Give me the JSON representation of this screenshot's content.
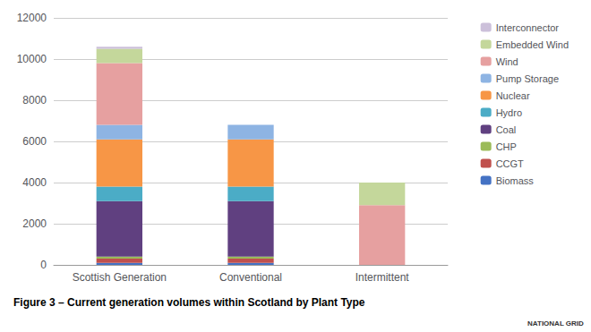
{
  "chart_data": {
    "type": "bar",
    "stacked": true,
    "title": "Figure 3 – Current generation volumes within Scotland by Plant Type",
    "annotations": [
      {
        "text": "NATIONAL GRID"
      }
    ],
    "categories": [
      "Scottish Generation",
      "Conventional",
      "Intermittent"
    ],
    "series": [
      {
        "name": "Biomass",
        "color": "#4472C4",
        "values": [
          100,
          100,
          0
        ]
      },
      {
        "name": "CCGT",
        "color": "#C0504D",
        "values": [
          200,
          200,
          0
        ]
      },
      {
        "name": "CHP",
        "color": "#9BBB59",
        "values": [
          100,
          100,
          0
        ]
      },
      {
        "name": "Coal",
        "color": "#604080",
        "values": [
          2700,
          2700,
          0
        ]
      },
      {
        "name": "Hydro",
        "color": "#4BACC6",
        "values": [
          700,
          700,
          0
        ]
      },
      {
        "name": "Nuclear",
        "color": "#F79646",
        "values": [
          2300,
          2300,
          0
        ]
      },
      {
        "name": "Pump Storage",
        "color": "#8EB4E3",
        "values": [
          700,
          700,
          0
        ]
      },
      {
        "name": "Wind",
        "color": "#E6A0A0",
        "values": [
          3000,
          0,
          2900
        ]
      },
      {
        "name": "Embedded Wind",
        "color": "#C4D79B",
        "values": [
          700,
          0,
          1100
        ]
      },
      {
        "name": "Interconnector",
        "color": "#CCC0DA",
        "values": [
          100,
          0,
          0
        ]
      }
    ],
    "ylim": [
      0,
      12000
    ],
    "yticks": [
      0,
      2000,
      4000,
      6000,
      8000,
      10000,
      12000
    ],
    "grid": true,
    "legend": "right"
  }
}
